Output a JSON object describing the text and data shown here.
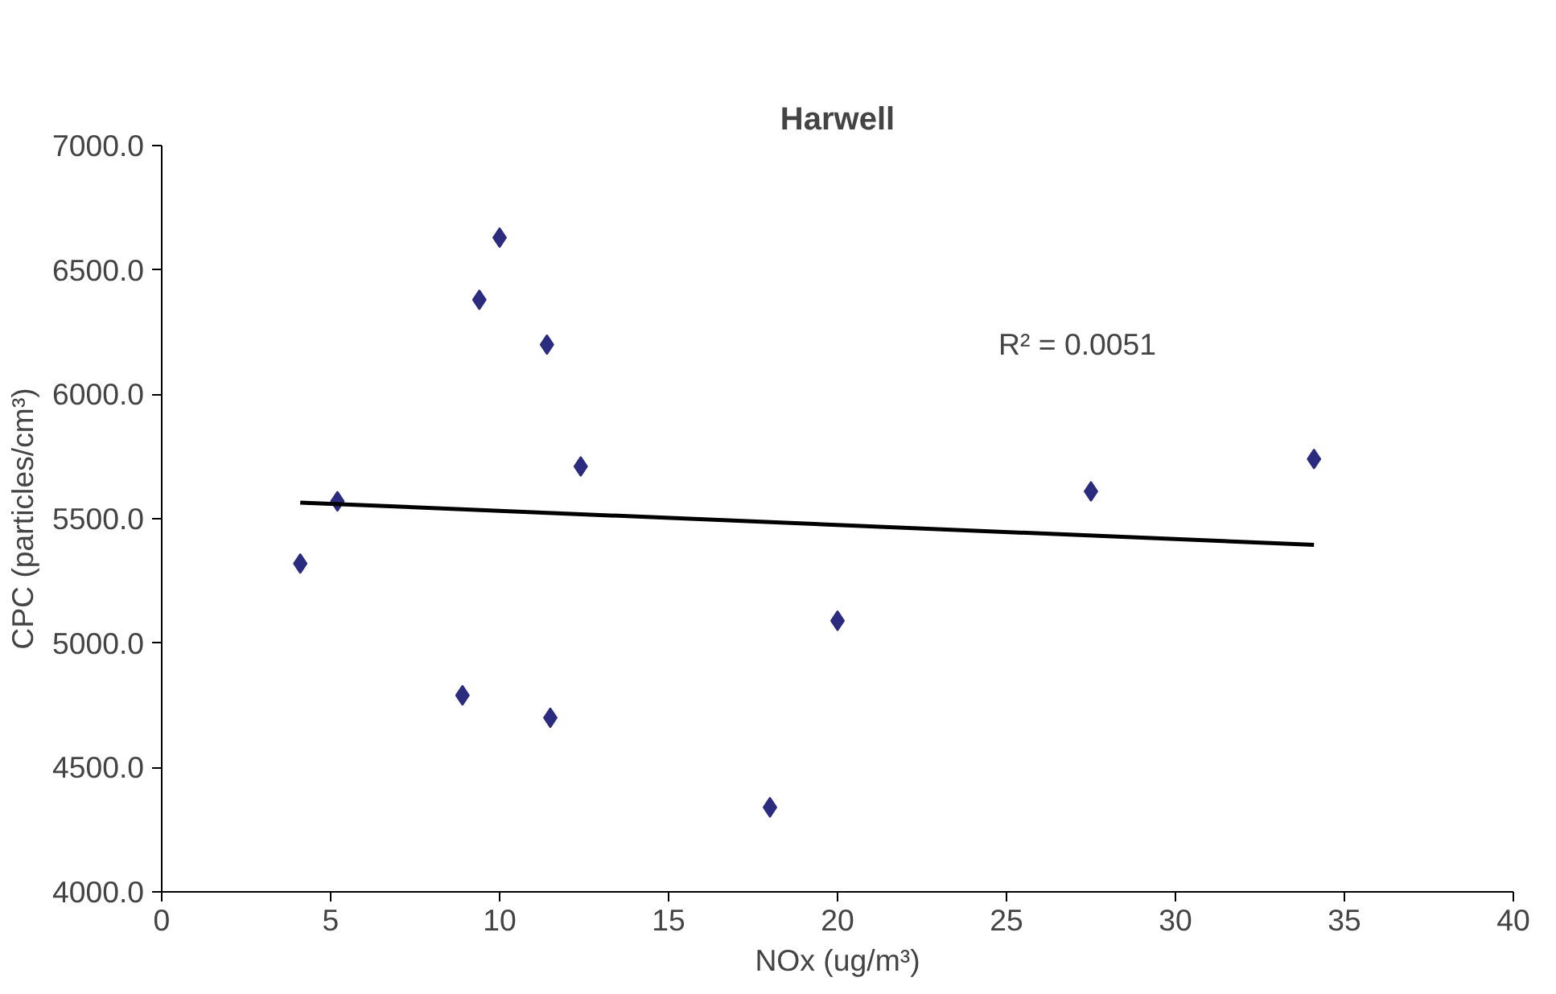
{
  "chart_data": {
    "type": "scatter",
    "title": "Harwell",
    "xlabel": "NOx (ug/m³)",
    "ylabel": "CPC (particles/cm³)",
    "xlim": [
      0,
      40
    ],
    "xticks": [
      0,
      5,
      10,
      15,
      20,
      25,
      30,
      35,
      40
    ],
    "ylim": [
      4000,
      7000
    ],
    "yticks": [
      {
        "value": 4000,
        "label": "4000.0"
      },
      {
        "value": 4500,
        "label": "4500.0"
      },
      {
        "value": 5000,
        "label": "5000.0"
      },
      {
        "value": 5500,
        "label": "5500.0"
      },
      {
        "value": 6000,
        "label": "6000.0"
      },
      {
        "value": 6500,
        "label": "6500.0"
      },
      {
        "value": 7000,
        "label": "7000.0"
      }
    ],
    "grid": false,
    "annotations": [
      "R² = 0.0051"
    ],
    "series": [
      {
        "color": "#2b2b7f",
        "marker": "diamond",
        "x": [
          4.1,
          5.2,
          8.9,
          9.4,
          10.0,
          11.4,
          11.5,
          12.4,
          18.0,
          20.0,
          27.5,
          34.1
        ],
        "values": [
          5320,
          5570,
          4790,
          6380,
          6630,
          6200,
          4700,
          5710,
          4340,
          5090,
          5610,
          5740
        ]
      },
      {
        "type": "line",
        "color": "#000000",
        "marker": "none",
        "x": [
          4.1,
          34.1
        ],
        "values": [
          5565,
          5395
        ]
      }
    ]
  }
}
